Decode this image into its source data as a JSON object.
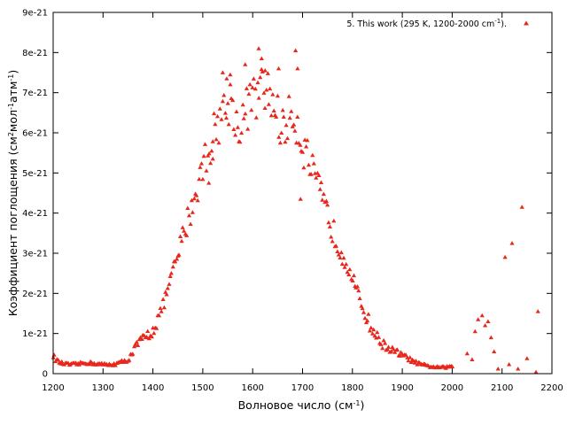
{
  "chart_data": {
    "type": "scatter",
    "title": "",
    "xlabel": "Волновое число (см",
    "xlabel_sup": "-1",
    "xlabel_end": ")",
    "ylabel": "Коэффициент поглощения (см",
    "ylabel_sup1": "2",
    "ylabel_mid": "мол",
    "ylabel_sup2": "-1",
    "ylabel_mid2": "атм",
    "ylabel_sup3": "-1",
    "ylabel_end": ")",
    "xlim": [
      1200,
      2200
    ],
    "ylim": [
      0,
      9e-21
    ],
    "x_ticks": [
      "1200",
      "1300",
      "1400",
      "1500",
      "1600",
      "1700",
      "1800",
      "1900",
      "2000",
      "2100",
      "2200"
    ],
    "y_ticks": [
      "0",
      "1e-21",
      "2e-21",
      "3e-21",
      "4e-21",
      "5e-21",
      "6e-21",
      "7e-21",
      "8e-21",
      "9e-21"
    ],
    "grid": false,
    "legend_position": "top-right",
    "color": "#e8271c",
    "marker": "triangle",
    "series": [
      {
        "name": "5. This work (295 K, 1200-2000 cm",
        "name_sup": "-1",
        "name_end": ").",
        "x_step": 2.5,
        "points": [
          [
            1200,
            4.6e-22
          ],
          [
            1205,
            3.6e-22
          ],
          [
            1210,
            3e-22
          ],
          [
            1215,
            2.7e-22
          ],
          [
            1220,
            2.5e-22
          ],
          [
            1230,
            2.3e-22
          ],
          [
            1240,
            2.3e-22
          ],
          [
            1250,
            2.4e-22
          ],
          [
            1260,
            2.6e-22
          ],
          [
            1270,
            2.7e-22
          ],
          [
            1280,
            2.6e-22
          ],
          [
            1290,
            2.4e-22
          ],
          [
            1300,
            2.3e-22
          ],
          [
            1310,
            2.2e-22
          ],
          [
            1320,
            2.3e-22
          ],
          [
            1330,
            2.6e-22
          ],
          [
            1340,
            3e-22
          ],
          [
            1350,
            3.4e-22
          ],
          [
            1360,
            5.5e-22
          ],
          [
            1370,
            7.5e-22
          ],
          [
            1380,
            8.5e-22
          ],
          [
            1390,
            9.5e-22
          ],
          [
            1400,
            1.1e-21
          ],
          [
            1410,
            1.35e-21
          ],
          [
            1420,
            1.7e-21
          ],
          [
            1430,
            2.1e-21
          ],
          [
            1440,
            2.5e-21
          ],
          [
            1450,
            2.95e-21
          ],
          [
            1460,
            3.4e-21
          ],
          [
            1470,
            3.85e-21
          ],
          [
            1480,
            4.25e-21
          ],
          [
            1490,
            4.7e-21
          ],
          [
            1500,
            5.15e-21
          ],
          [
            1510,
            5.55e-21
          ],
          [
            1520,
            5.9e-21
          ],
          [
            1530,
            6.25e-21
          ],
          [
            1540,
            6.5e-21
          ],
          [
            1550,
            6.7e-21
          ],
          [
            1560,
            6.85e-21
          ],
          [
            1570,
            6e-21
          ],
          [
            1580,
            6.4e-21
          ],
          [
            1590,
            6.65e-21
          ],
          [
            1600,
            6.8e-21
          ],
          [
            1610,
            6.95e-21
          ],
          [
            1620,
            7.05e-21
          ],
          [
            1630,
            7e-21
          ],
          [
            1640,
            6.8e-21
          ],
          [
            1650,
            6.4e-21
          ],
          [
            1660,
            6.1e-21
          ],
          [
            1670,
            6.3e-21
          ],
          [
            1680,
            6.5e-21
          ],
          [
            1690,
            6.2e-21
          ],
          [
            1700,
            5.7e-21
          ],
          [
            1710,
            5.4e-21
          ],
          [
            1720,
            5e-21
          ],
          [
            1730,
            4.65e-21
          ],
          [
            1740,
            4.3e-21
          ],
          [
            1750,
            3.95e-21
          ],
          [
            1760,
            3.6e-21
          ],
          [
            1770,
            3.25e-21
          ],
          [
            1780,
            3e-21
          ],
          [
            1790,
            2.75e-21
          ],
          [
            1800,
            2.4e-21
          ],
          [
            1810,
            2e-21
          ],
          [
            1820,
            1.65e-21
          ],
          [
            1830,
            1.35e-21
          ],
          [
            1840,
            1.1e-21
          ],
          [
            1850,
            9e-22
          ],
          [
            1860,
            7.5e-22
          ],
          [
            1870,
            6.5e-22
          ],
          [
            1880,
            5.8e-22
          ],
          [
            1890,
            5.2e-22
          ],
          [
            1900,
            4.6e-22
          ],
          [
            1910,
            3.9e-22
          ],
          [
            1920,
            3.2e-22
          ],
          [
            1930,
            2.6e-22
          ],
          [
            1940,
            2.2e-22
          ],
          [
            1950,
            1.9e-22
          ],
          [
            1960,
            1.7e-22
          ],
          [
            1970,
            1.6e-22
          ],
          [
            1980,
            1.55e-22
          ],
          [
            1990,
            1.6e-22
          ],
          [
            2000,
            1.8e-22
          ]
        ],
        "outliers": [
          [
            1540,
            7.5e-21
          ],
          [
            1548,
            7.35e-21
          ],
          [
            1555,
            7.45e-21
          ],
          [
            1585,
            7.7e-21
          ],
          [
            1612,
            8.1e-21
          ],
          [
            1618,
            7.85e-21
          ],
          [
            1625,
            7.55e-21
          ],
          [
            1652,
            7.6e-21
          ],
          [
            1686,
            8.05e-21
          ],
          [
            1690,
            7.6e-21
          ],
          [
            1696,
            4.35e-21
          ],
          [
            1512,
            4.75e-21
          ],
          [
            1520,
            5.35e-21
          ],
          [
            2030,
            5e-22
          ],
          [
            2040,
            3.5e-22
          ],
          [
            2046,
            1.05e-21
          ],
          [
            2052,
            1.35e-21
          ],
          [
            2060,
            1.45e-21
          ],
          [
            2066,
            1.2e-21
          ],
          [
            2072,
            1.3e-21
          ],
          [
            2078,
            9e-22
          ],
          [
            2084,
            5.5e-22
          ],
          [
            2092,
            1.2e-22
          ],
          [
            2106,
            2.9e-21
          ],
          [
            2114,
            2.3e-22
          ],
          [
            2120,
            3.25e-21
          ],
          [
            2132,
            1.2e-22
          ],
          [
            2140,
            4.15e-21
          ],
          [
            2150,
            3.8e-22
          ],
          [
            2168,
            4e-23
          ],
          [
            2172,
            1.55e-21
          ]
        ]
      }
    ]
  }
}
